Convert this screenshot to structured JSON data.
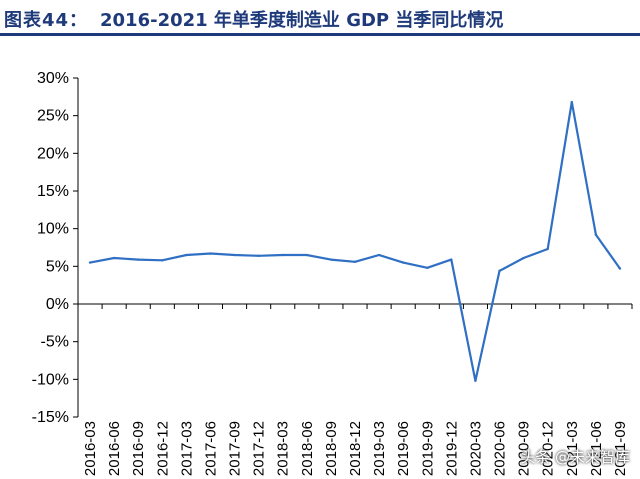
{
  "header": {
    "figure_label": "图表44：",
    "title": "2016-2021 年单季度制造业 GDP 当季同比情况"
  },
  "watermark": "头条 @未来智库",
  "colors": {
    "line": "#2f6fc4",
    "axis": "#000000",
    "title": "#1f3a7a"
  },
  "chart_data": {
    "type": "line",
    "title": "2016-2021 年单季度制造业 GDP 当季同比情况",
    "xlabel": "",
    "ylabel": "",
    "ylim": [
      -15,
      30
    ],
    "yticks": [
      30,
      25,
      20,
      15,
      10,
      5,
      0,
      -5,
      -10,
      -15
    ],
    "ytick_labels": [
      "30%",
      "25%",
      "20%",
      "15%",
      "10%",
      "5%",
      "0%",
      "-5%",
      "-10%",
      "-15%"
    ],
    "grid": false,
    "legend": "none",
    "categories": [
      "2016-03",
      "2016-06",
      "2016-09",
      "2016-12",
      "2017-03",
      "2017-06",
      "2017-09",
      "2017-12",
      "2018-03",
      "2018-06",
      "2018-09",
      "2018-12",
      "2019-03",
      "2019-06",
      "2019-09",
      "2019-12",
      "2020-03",
      "2020-06",
      "2020-09",
      "2020-12",
      "2021-03",
      "2021-06",
      "2021-09"
    ],
    "series": [
      {
        "values": [
          5.5,
          6.1,
          5.9,
          5.8,
          6.5,
          6.7,
          6.5,
          6.4,
          6.5,
          6.5,
          5.9,
          5.6,
          6.5,
          5.5,
          4.8,
          5.9,
          -10.2,
          4.4,
          6.1,
          7.3,
          26.8,
          9.2,
          4.7
        ]
      }
    ]
  }
}
